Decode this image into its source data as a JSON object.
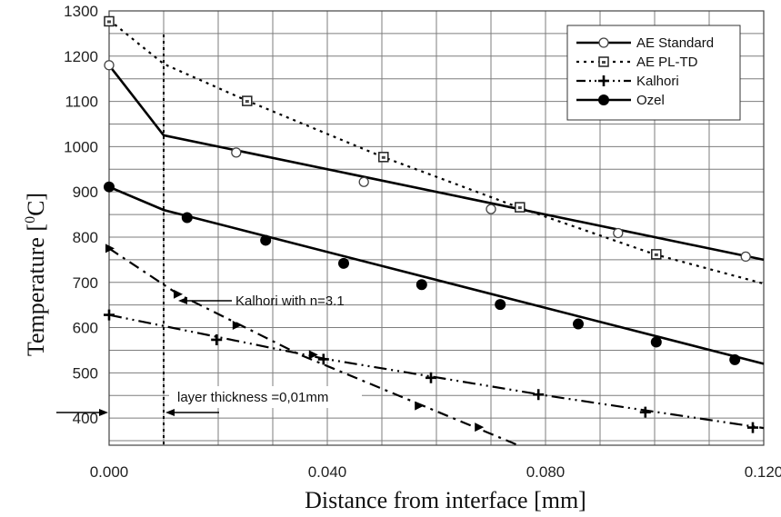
{
  "chart_data": {
    "type": "line",
    "xlabel": "Distance from interface [mm]",
    "ylabel": "Temperature [",
    "ylabel_sup": "0",
    "ylabel_unit": "C]",
    "xlim": [
      0.0,
      0.12
    ],
    "ylim": [
      340,
      1300
    ],
    "x_ticks": [
      0.0,
      0.04,
      0.08,
      0.12
    ],
    "x_tick_labels": [
      "0.000",
      "0.040",
      "0.080",
      "0.120"
    ],
    "y_ticks": [
      400,
      500,
      600,
      700,
      800,
      900,
      1000,
      1100,
      1200,
      1300
    ],
    "y_tick_labels": [
      "400",
      "500",
      "600",
      "700",
      "800",
      "900",
      "1000",
      "1100",
      "1200",
      "1300"
    ],
    "grid": true,
    "legend_position": "top-right",
    "series": [
      {
        "name": "AE Standard",
        "style": "solid",
        "marker": "open-circle",
        "line": [
          [
            0.0,
            1180
          ],
          [
            0.01,
            1025
          ],
          [
            0.12,
            750
          ]
        ],
        "markers": [
          [
            0.0,
            1180
          ],
          [
            0.0233,
            987
          ],
          [
            0.0467,
            922
          ],
          [
            0.07,
            862
          ],
          [
            0.0933,
            809
          ],
          [
            0.1167,
            757
          ]
        ]
      },
      {
        "name": "AE PL-TD",
        "style": "dotted",
        "marker": "dotted-square",
        "line": [
          [
            0.0,
            1280
          ],
          [
            0.01,
            1183
          ],
          [
            0.025,
            1103
          ],
          [
            0.05,
            978
          ],
          [
            0.075,
            866
          ],
          [
            0.1,
            762
          ],
          [
            0.12,
            697
          ]
        ],
        "markers": [
          [
            0.0,
            1277
          ],
          [
            0.0253,
            1101
          ],
          [
            0.0503,
            977
          ],
          [
            0.0753,
            866
          ],
          [
            0.1003,
            762
          ]
        ]
      },
      {
        "name": "Kalhori",
        "style": "dash-dot-dot",
        "marker": "plus",
        "line": [
          [
            0.0,
            628
          ],
          [
            0.04,
            530
          ],
          [
            0.08,
            450
          ],
          [
            0.12,
            378
          ]
        ],
        "markers": [
          [
            0.0,
            628
          ],
          [
            0.0197,
            573
          ],
          [
            0.0393,
            530
          ],
          [
            0.059,
            489
          ],
          [
            0.0787,
            452
          ],
          [
            0.0983,
            413
          ],
          [
            0.118,
            379
          ]
        ]
      },
      {
        "name": "Ozel",
        "style": "solid",
        "marker": "filled-circle",
        "line": [
          [
            0.0,
            911
          ],
          [
            0.01,
            860
          ],
          [
            0.12,
            520
          ]
        ],
        "markers": [
          [
            0.0,
            911
          ],
          [
            0.0143,
            843
          ],
          [
            0.0287,
            793
          ],
          [
            0.043,
            742
          ],
          [
            0.0573,
            695
          ],
          [
            0.0717,
            651
          ],
          [
            0.086,
            608
          ],
          [
            0.1003,
            568
          ],
          [
            0.1147,
            529
          ]
        ]
      },
      {
        "name": "Kalhori n=3.1",
        "style": "dash-dot",
        "marker": "triangle",
        "line": [
          [
            0.0,
            775
          ],
          [
            0.0125,
            675
          ],
          [
            0.035,
            540
          ],
          [
            0.075,
            340
          ]
        ],
        "markers": [
          [
            0.0,
            775
          ],
          [
            0.0125,
            674
          ],
          [
            0.0233,
            605
          ],
          [
            0.0373,
            540
          ],
          [
            0.0567,
            427
          ],
          [
            0.0677,
            380
          ]
        ]
      }
    ],
    "annotations": {
      "kalhori_n": "Kalhori with n=3.1",
      "layer_thickness": "layer thickness =0,01mm"
    }
  }
}
